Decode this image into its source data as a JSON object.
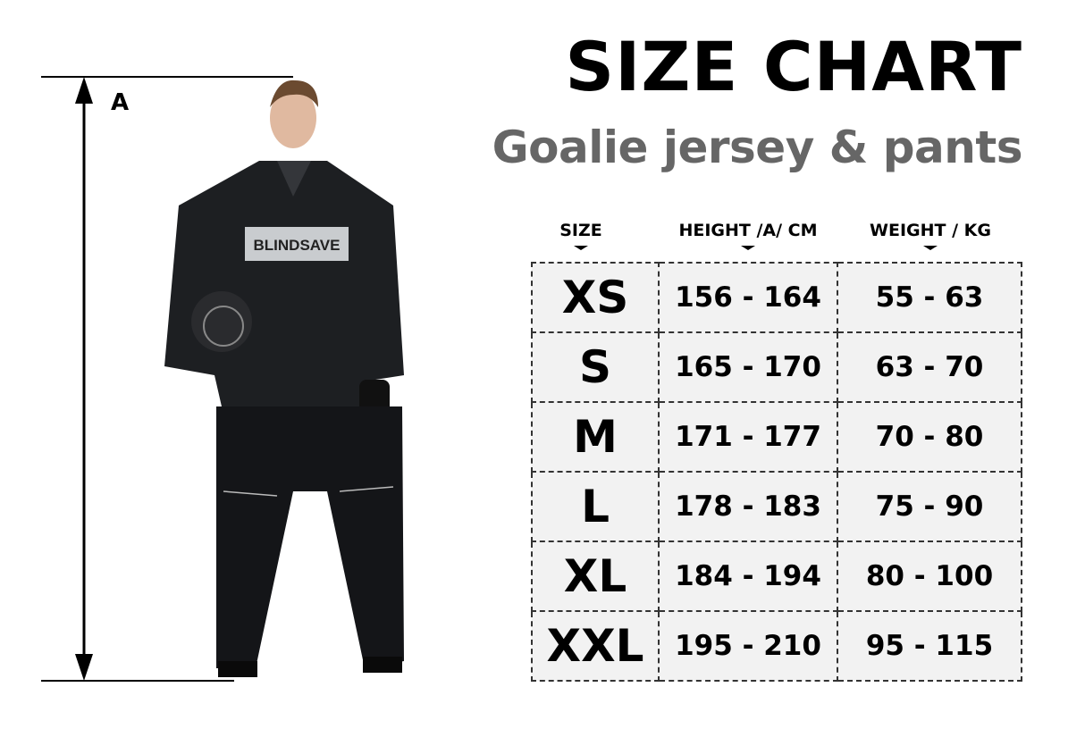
{
  "header": {
    "title": "SIZE CHART",
    "subtitle": "Goalie jersey & pants"
  },
  "measurement": {
    "label": "A"
  },
  "jersey_logo": "BLINDSAVE",
  "table": {
    "columns": [
      "SIZE",
      "HEIGHT /A/ CM",
      "WEIGHT / KG"
    ],
    "rows": [
      {
        "size": "XS",
        "height": "156 - 164",
        "weight": "55 - 63"
      },
      {
        "size": "S",
        "height": "165 - 170",
        "weight": "63 - 70"
      },
      {
        "size": "M",
        "height": "171 - 177",
        "weight": "70 - 80"
      },
      {
        "size": "L",
        "height": "178 - 183",
        "weight": "75 - 90"
      },
      {
        "size": "XL",
        "height": "184 - 194",
        "weight": "80 - 100"
      },
      {
        "size": "XXL",
        "height": "195 - 210",
        "weight": "95 - 115"
      }
    ]
  }
}
